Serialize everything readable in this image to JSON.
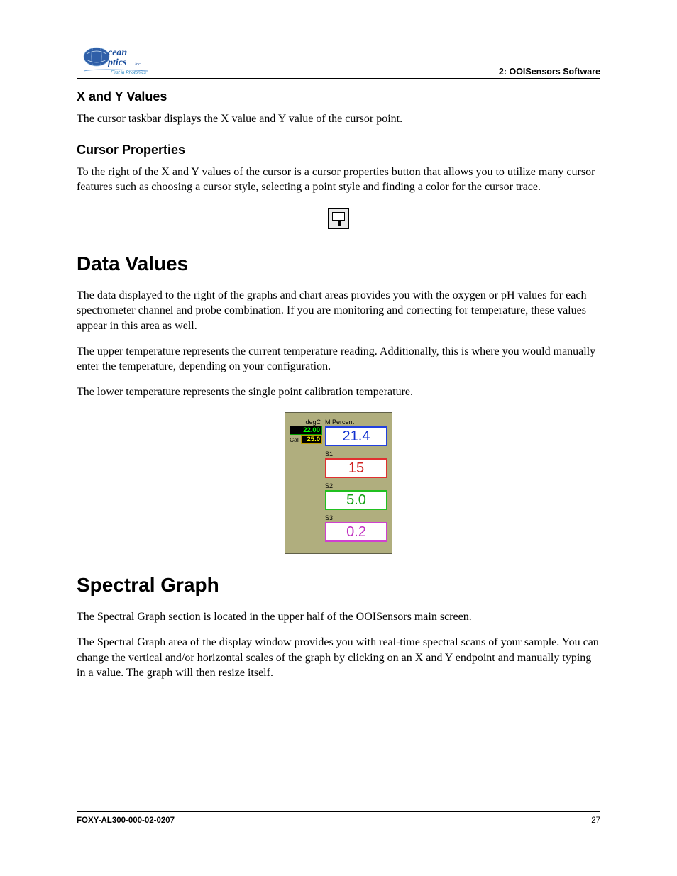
{
  "header": {
    "right_label": "2: OOISensors Software",
    "logo": {
      "line1": "cean",
      "line2": "ptics",
      "tagline": "First in Photonics",
      "globe_color": "#2f5fa8",
      "text_color": "#164a9a",
      "tagline_color": "#1a7fbf"
    }
  },
  "sections": {
    "xy": {
      "title": "X and Y Values",
      "p1": "The cursor taskbar displays the X value and Y value of the cursor point."
    },
    "cursor_props": {
      "title": "Cursor Properties",
      "p1": "To the right of the X and Y values of the cursor is a cursor properties button that allows you to utilize many cursor features such as choosing a cursor style, selecting a point style and finding a color for the cursor trace."
    },
    "data_values": {
      "title": "Data Values",
      "p1": "The data displayed to the right of the graphs and chart areas provides you with the oxygen or pH values for each spectrometer channel and probe combination. If you are monitoring and correcting for temperature, these values appear in this area as well.",
      "p2": "The upper temperature represents the current temperature reading. Additionally, this is where you would manually enter the temperature, depending on your configuration.",
      "p3": "The lower temperature represents the single point calibration temperature."
    },
    "spectral": {
      "title": "Spectral Graph",
      "p1": "The Spectral Graph section is located in the upper half of the OOISensors main screen.",
      "p2": "The Spectral Graph area of the display window provides you with real-time spectral scans of your sample. You can change the vertical and/or horizontal scales of the graph by clicking on an X and Y endpoint and manually typing in a value. The graph will then resize itself."
    }
  },
  "data_panel": {
    "background_color": "#b0ae7e",
    "temp_unit_label": "degC",
    "temp_current": {
      "value": "22.00",
      "color": "#00ff00",
      "border_color": "#00a000"
    },
    "cal_label": "Cal",
    "temp_cal": {
      "value": "25.0",
      "color": "#ffff00",
      "border_color": "#c0a000"
    },
    "main_header": "M   Percent",
    "readings": [
      {
        "label": "",
        "value": "21.4",
        "color": "#1030d0",
        "border_color": "#2040e0"
      },
      {
        "label": "S1",
        "value": "15",
        "color": "#d02020",
        "border_color": "#e03030"
      },
      {
        "label": "S2",
        "value": "5.0",
        "color": "#10a010",
        "border_color": "#20c020"
      },
      {
        "label": "S3",
        "value": "0.2",
        "color": "#c030c0",
        "border_color": "#d040d0"
      }
    ]
  },
  "footer": {
    "doc_id": "FOXY-AL300-000-02-0207",
    "page_num": "27"
  }
}
